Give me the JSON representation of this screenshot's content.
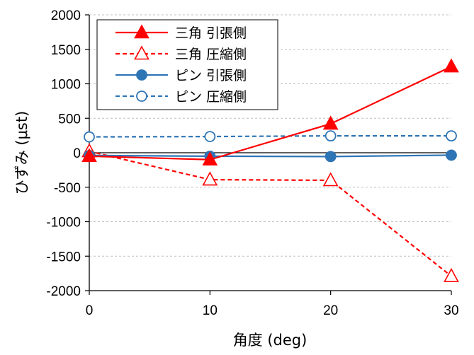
{
  "chart_data": {
    "type": "line",
    "xlabel": "角度 (deg)",
    "ylabel": "ひずみ (μst)",
    "x": [
      0,
      10,
      20,
      30
    ],
    "x_ticks": [
      "0",
      "10",
      "20",
      "30"
    ],
    "xlim": [
      0,
      30
    ],
    "ylim": [
      -2000,
      2000
    ],
    "y_ticks": [
      "-2000",
      "-1500",
      "-1000",
      "-500",
      "0",
      "500",
      "1000",
      "1500",
      "2000"
    ],
    "grid": "horizontal dashed",
    "legend_position": "top-left",
    "series": [
      {
        "name": "三角 引張側",
        "values": [
          -50,
          -100,
          420,
          1250
        ],
        "color": "#ff0000",
        "line": "solid",
        "marker": "triangle",
        "filled": true
      },
      {
        "name": "三角 圧縮側",
        "values": [
          20,
          -390,
          -400,
          -1790
        ],
        "color": "#ff0000",
        "line": "dashed",
        "marker": "triangle",
        "filled": false
      },
      {
        "name": "ピン 引張側",
        "values": [
          -40,
          -50,
          -55,
          -35
        ],
        "color": "#2e75b6",
        "line": "solid",
        "marker": "circle",
        "filled": true
      },
      {
        "name": "ピン 圧縮側",
        "values": [
          230,
          235,
          245,
          245
        ],
        "color": "#2e75b6",
        "line": "dashed",
        "marker": "circle",
        "filled": false
      }
    ]
  }
}
